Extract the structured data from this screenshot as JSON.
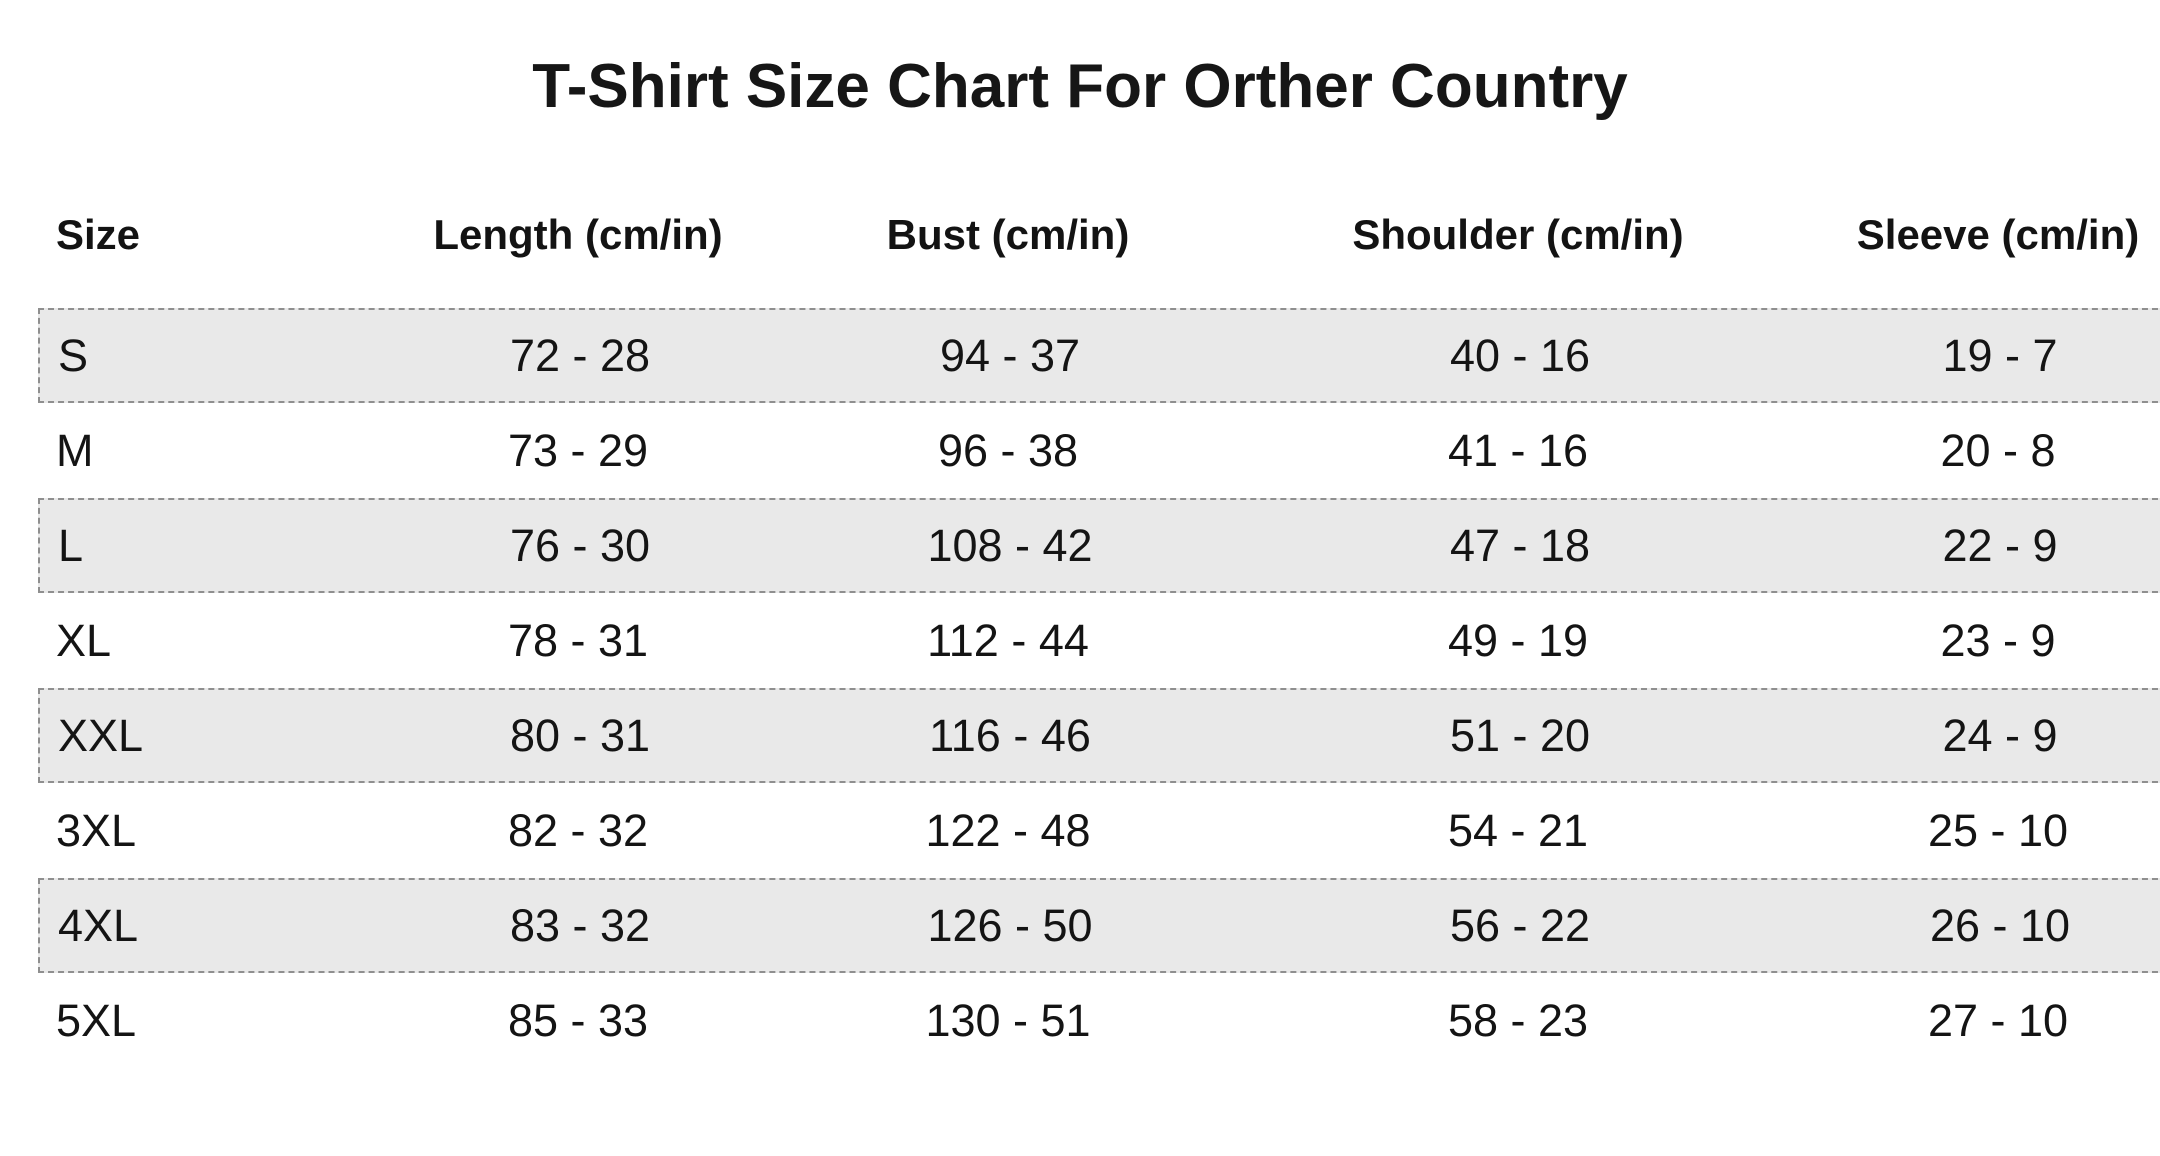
{
  "title": "T-Shirt Size Chart For Orther Country",
  "colors": {
    "background": "#ffffff",
    "row_shade": "#e9e9e9",
    "row_border": "#8f8f8f",
    "text": "#141414"
  },
  "chart_data": {
    "type": "table",
    "title": "T-Shirt Size Chart For Orther Country",
    "columns": [
      "Size",
      "Length (cm/in)",
      "Bust (cm/in)",
      "Shoulder (cm/in)",
      "Sleeve (cm/in)"
    ],
    "rows": [
      [
        "S",
        "72 - 28",
        "94 - 37",
        "40 - 16",
        "19 - 7"
      ],
      [
        "M",
        "73 - 29",
        "96 - 38",
        "41 - 16",
        "20 - 8"
      ],
      [
        "L",
        "76 - 30",
        "108 - 42",
        "47 - 18",
        "22 - 9"
      ],
      [
        "XL",
        "78 - 31",
        "112 - 44",
        "49 - 19",
        "23 - 9"
      ],
      [
        "XXL",
        "80 - 31",
        "116 - 46",
        "51 - 20",
        "24 - 9"
      ],
      [
        "3XL",
        "82 - 32",
        "122 - 48",
        "54 - 21",
        "25 - 10"
      ],
      [
        "4XL",
        "83 - 32",
        "126 - 50",
        "56 - 22",
        "26 - 10"
      ],
      [
        "5XL",
        "85 - 33",
        "130 - 51",
        "58 - 23",
        "27 - 10"
      ]
    ],
    "layout": {
      "shaded_row_indices": [
        0,
        2,
        4,
        6
      ],
      "header_alignment": [
        "left",
        "center",
        "center",
        "center",
        "center"
      ]
    }
  }
}
